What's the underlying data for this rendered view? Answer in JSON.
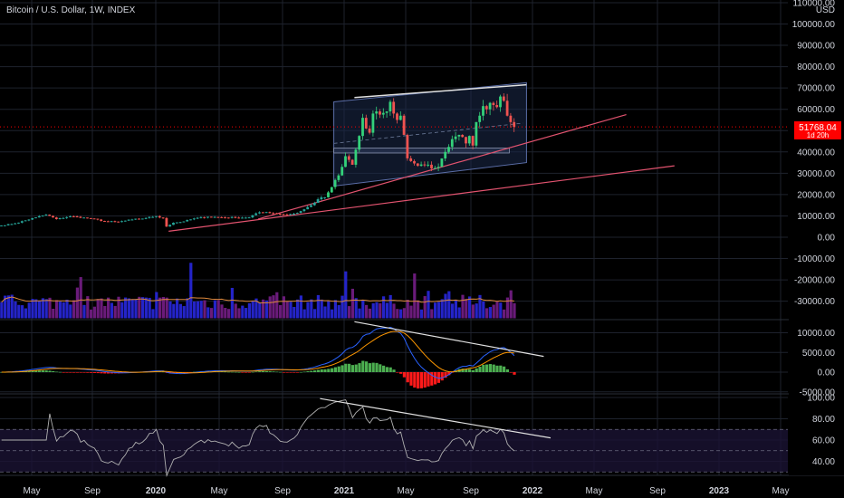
{
  "header": {
    "title": "Bitcoin / U.S. Dollar, 1W, INDEX"
  },
  "colors": {
    "background": "#000000",
    "grid": "#1e222d",
    "up": "#26a69a",
    "up_bright": "#33d17a",
    "down": "#ef5350",
    "price_tag": "#ff0000",
    "channel": "#5b6ea8",
    "trendline": "#e2536f",
    "volume_blue": "#2424c8",
    "volume_purple": "#6a1b7a",
    "volume_ma": "#e08a3c",
    "macd_line": "#2962ff",
    "signal_line": "#ff9800",
    "hist_up": "#4caf50",
    "hist_down": "#ff1a1a",
    "rsi_line": "#b0b0b0",
    "rsi_band": "#1a1333"
  },
  "chart_data": {
    "type": "candlestick",
    "title": "Bitcoin / U.S. Dollar, 1W, INDEX",
    "currency": "USD",
    "price_axis": {
      "ticks": [
        "110000.00",
        "100000.00",
        "90000.00",
        "80000.00",
        "70000.00",
        "60000.00",
        "50000.00",
        "40000.00",
        "30000.00",
        "20000.00",
        "10000.00",
        "0.00",
        "-10000.00",
        "-20000.00",
        "-30000.00"
      ],
      "top_label": "USD"
    },
    "macd_axis": {
      "ticks": [
        "10000.00",
        "5000.00",
        "0.00",
        "-5000.00"
      ]
    },
    "rsi_axis": {
      "ticks": [
        "100.00",
        "80.00",
        "60.00",
        "40.00"
      ],
      "overbought": 70,
      "oversold": 30,
      "mid": 50
    },
    "time_axis": {
      "ticks": [
        "May",
        "Sep",
        "2020",
        "May",
        "Sep",
        "2021",
        "May",
        "Sep",
        "2022",
        "May",
        "Sep",
        "2023",
        "May"
      ]
    },
    "last_price": {
      "value": "51768.04",
      "countdown": "1d 20h"
    },
    "price_close_anchors": [
      [
        0,
        5500
      ],
      [
        4,
        6500
      ],
      [
        10,
        9300
      ],
      [
        13,
        10600
      ],
      [
        16,
        8500
      ],
      [
        20,
        9800
      ],
      [
        26,
        8800
      ],
      [
        30,
        7500
      ],
      [
        34,
        7200
      ],
      [
        38,
        8300
      ],
      [
        42,
        9000
      ],
      [
        45,
        9900
      ],
      [
        47,
        9000
      ],
      [
        48,
        5000
      ],
      [
        50,
        6800
      ],
      [
        53,
        7400
      ],
      [
        56,
        8800
      ],
      [
        60,
        9600
      ],
      [
        64,
        9300
      ],
      [
        68,
        9200
      ],
      [
        72,
        9300
      ],
      [
        74,
        11200
      ],
      [
        77,
        11800
      ],
      [
        80,
        11000
      ],
      [
        83,
        10700
      ],
      [
        86,
        11400
      ],
      [
        88,
        13100
      ],
      [
        90,
        15000
      ],
      [
        92,
        17800
      ],
      [
        94,
        18700
      ],
      [
        96,
        23500
      ],
      [
        98,
        29000
      ],
      [
        99,
        33000
      ],
      [
        100,
        38000
      ],
      [
        102,
        34000
      ],
      [
        104,
        47500
      ],
      [
        105,
        56000
      ],
      [
        106,
        51000
      ],
      [
        107,
        49000
      ],
      [
        108,
        58000
      ],
      [
        109,
        59000
      ],
      [
        110,
        57500
      ],
      [
        112,
        59000
      ],
      [
        113,
        63500
      ],
      [
        114,
        58000
      ],
      [
        115,
        55000
      ],
      [
        116,
        57000
      ],
      [
        117,
        48000
      ],
      [
        118,
        37000
      ],
      [
        119,
        35700
      ],
      [
        121,
        33500
      ],
      [
        123,
        34000
      ],
      [
        125,
        32300
      ],
      [
        127,
        33000
      ],
      [
        129,
        40000
      ],
      [
        131,
        46000
      ],
      [
        133,
        48000
      ],
      [
        134,
        47000
      ],
      [
        135,
        44000
      ],
      [
        136,
        47500
      ],
      [
        137,
        43000
      ],
      [
        138,
        54000
      ],
      [
        139,
        57000
      ],
      [
        140,
        61500
      ],
      [
        141,
        60000
      ],
      [
        142,
        63000
      ],
      [
        143,
        62000
      ],
      [
        144,
        61000
      ],
      [
        145,
        66000
      ],
      [
        146,
        64000
      ],
      [
        147,
        57000
      ],
      [
        148,
        54000
      ],
      [
        149,
        51768
      ]
    ],
    "annotations": {
      "channel": {
        "upper": [
          [
            97,
            63500
          ],
          [
            153,
            72500
          ]
        ],
        "lower": [
          [
            97,
            24000
          ],
          [
            153,
            35000
          ]
        ]
      },
      "upper_resistance": [
        [
          103,
          65500
        ],
        [
          153,
          71500
        ]
      ],
      "support_zone": [
        [
          97,
          39500
        ],
        [
          148,
          41800
        ]
      ],
      "mid_dashed": [
        [
          97,
          44000
        ],
        [
          152,
          53500
        ]
      ],
      "trendline_1": [
        [
          75,
          8500
        ],
        [
          182,
          57500
        ]
      ],
      "trendline_2": [
        [
          49,
          2800
        ],
        [
          196,
          33500
        ]
      ],
      "macd_divergence": [
        [
          103,
          12800
        ],
        [
          158,
          4000
        ]
      ],
      "rsi_divergence": [
        [
          93,
          99
        ],
        [
          160,
          62
        ]
      ]
    },
    "volume": {
      "bars": 150,
      "ma_period": 20
    },
    "macd": {
      "fast": 12,
      "slow": 26,
      "signal": 9
    },
    "rsi": {
      "length": 14
    }
  }
}
